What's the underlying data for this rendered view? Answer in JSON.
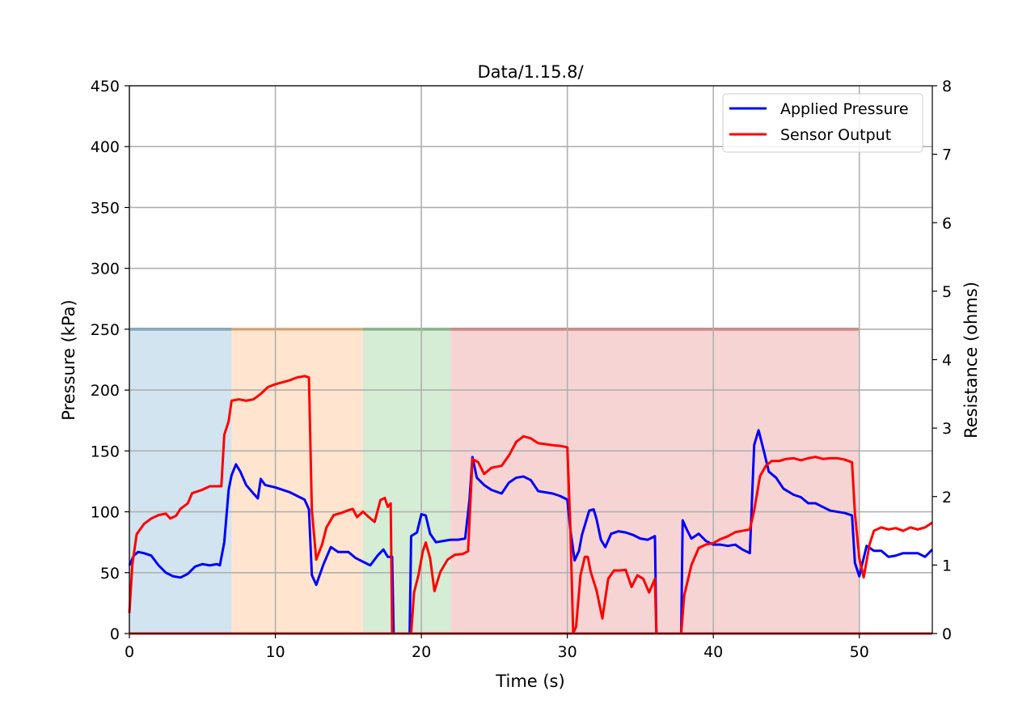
{
  "chart_data": {
    "type": "line",
    "title": "Data/1.15.8/",
    "xlabel": "Time (s)",
    "ylabel": "Pressure (kPa)",
    "y2label": "Resistance (ohms)",
    "xlim": [
      0,
      55
    ],
    "ylim": [
      0,
      450
    ],
    "y2lim": [
      0,
      8
    ],
    "xticks": [
      "0",
      "10",
      "20",
      "30",
      "40",
      "50"
    ],
    "yticks": [
      "0",
      "50",
      "100",
      "150",
      "200",
      "250",
      "300",
      "350",
      "400",
      "450"
    ],
    "y2ticks": [
      "0",
      "1",
      "2",
      "3",
      "4",
      "5",
      "6",
      "7",
      "8"
    ],
    "grid": true,
    "legend_position": "top-right",
    "phases": [
      {
        "start": 0,
        "end": 7,
        "color": "#1f77b4",
        "level": 250
      },
      {
        "start": 7,
        "end": 16,
        "color": "#ff7f0e",
        "level": 250
      },
      {
        "start": 16,
        "end": 22,
        "color": "#2ca02c",
        "level": 250
      },
      {
        "start": 22,
        "end": 50,
        "color": "#d62728",
        "level": 250
      }
    ],
    "baseline": {
      "start": 0,
      "end": 55,
      "value": 0,
      "color": "#d62728"
    },
    "series": [
      {
        "name": "Applied Pressure",
        "axis": "left",
        "color": "#0000ff",
        "points": [
          [
            0,
            56
          ],
          [
            0.3,
            64
          ],
          [
            0.6,
            67
          ],
          [
            1,
            66
          ],
          [
            1.5,
            64
          ],
          [
            2,
            56
          ],
          [
            2.5,
            50
          ],
          [
            3,
            47
          ],
          [
            3.5,
            46
          ],
          [
            4,
            49
          ],
          [
            4.5,
            55
          ],
          [
            5,
            57
          ],
          [
            5.5,
            56
          ],
          [
            6,
            57
          ],
          [
            6.2,
            56
          ],
          [
            6.5,
            75
          ],
          [
            6.8,
            118
          ],
          [
            7,
            130
          ],
          [
            7.3,
            139
          ],
          [
            7.6,
            133
          ],
          [
            8,
            122
          ],
          [
            8.5,
            115
          ],
          [
            8.8,
            111
          ],
          [
            9,
            127
          ],
          [
            9.3,
            122
          ],
          [
            10,
            120
          ],
          [
            11,
            116
          ],
          [
            12,
            110
          ],
          [
            12.3,
            102
          ],
          [
            12.5,
            48
          ],
          [
            12.8,
            40
          ],
          [
            13.3,
            57
          ],
          [
            13.8,
            71
          ],
          [
            14.3,
            67
          ],
          [
            15,
            67
          ],
          [
            15.5,
            62
          ],
          [
            16,
            59
          ],
          [
            16.5,
            56
          ],
          [
            17,
            64
          ],
          [
            17.4,
            69
          ],
          [
            17.7,
            63
          ],
          [
            18,
            63
          ],
          [
            18.1,
            0
          ],
          [
            19.2,
            0
          ],
          [
            19.3,
            80
          ],
          [
            19.7,
            83
          ],
          [
            20,
            98
          ],
          [
            20.3,
            97
          ],
          [
            20.6,
            82
          ],
          [
            21,
            75
          ],
          [
            21.5,
            76
          ],
          [
            22,
            77
          ],
          [
            22.5,
            77
          ],
          [
            23,
            78
          ],
          [
            23.3,
            110
          ],
          [
            23.5,
            145
          ],
          [
            23.8,
            128
          ],
          [
            24.3,
            122
          ],
          [
            24.8,
            118
          ],
          [
            25.5,
            115
          ],
          [
            26,
            124
          ],
          [
            26.5,
            128
          ],
          [
            27,
            129
          ],
          [
            27.5,
            126
          ],
          [
            28,
            117
          ],
          [
            29,
            115
          ],
          [
            29.5,
            113
          ],
          [
            30,
            110
          ],
          [
            30.2,
            86
          ],
          [
            30.5,
            60
          ],
          [
            30.8,
            68
          ],
          [
            31,
            81
          ],
          [
            31.5,
            101
          ],
          [
            31.8,
            102
          ],
          [
            32,
            94
          ],
          [
            32.3,
            77
          ],
          [
            32.6,
            71
          ],
          [
            33,
            82
          ],
          [
            33.5,
            84
          ],
          [
            34,
            83
          ],
          [
            34.5,
            81
          ],
          [
            35,
            78
          ],
          [
            35.5,
            77
          ],
          [
            36,
            80
          ],
          [
            36.1,
            0
          ],
          [
            37.8,
            0
          ],
          [
            37.9,
            93
          ],
          [
            38.2,
            85
          ],
          [
            38.5,
            78
          ],
          [
            39,
            82
          ],
          [
            39.5,
            76
          ],
          [
            40,
            73
          ],
          [
            40.5,
            73
          ],
          [
            41,
            72
          ],
          [
            41.5,
            73
          ],
          [
            42,
            69
          ],
          [
            42.5,
            66
          ],
          [
            42.8,
            155
          ],
          [
            43.1,
            167
          ],
          [
            43.5,
            148
          ],
          [
            43.8,
            133
          ],
          [
            44.3,
            128
          ],
          [
            44.8,
            119
          ],
          [
            45.5,
            114
          ],
          [
            46,
            112
          ],
          [
            46.5,
            107
          ],
          [
            47,
            107
          ],
          [
            47.5,
            104
          ],
          [
            48,
            101
          ],
          [
            49,
            99
          ],
          [
            49.5,
            97
          ],
          [
            49.7,
            58
          ],
          [
            50,
            47
          ],
          [
            50.5,
            72
          ],
          [
            51,
            68
          ],
          [
            51.5,
            68
          ],
          [
            52,
            63
          ],
          [
            52.5,
            64
          ],
          [
            53,
            66
          ],
          [
            54,
            66
          ],
          [
            54.5,
            63
          ],
          [
            55,
            69
          ]
        ]
      },
      {
        "name": "Sensor Output",
        "axis": "right",
        "color": "#ff0000",
        "points": [
          [
            0,
            0.3
          ],
          [
            0.2,
            1.0
          ],
          [
            0.5,
            1.45
          ],
          [
            1,
            1.6
          ],
          [
            1.5,
            1.68
          ],
          [
            2,
            1.73
          ],
          [
            2.5,
            1.75
          ],
          [
            2.8,
            1.68
          ],
          [
            3.2,
            1.72
          ],
          [
            3.5,
            1.82
          ],
          [
            4,
            1.9
          ],
          [
            4.3,
            2.05
          ],
          [
            5,
            2.1
          ],
          [
            5.5,
            2.15
          ],
          [
            6,
            2.15
          ],
          [
            6.3,
            2.15
          ],
          [
            6.5,
            2.9
          ],
          [
            6.8,
            3.1
          ],
          [
            7,
            3.4
          ],
          [
            7.5,
            3.42
          ],
          [
            8,
            3.4
          ],
          [
            8.5,
            3.42
          ],
          [
            9,
            3.5
          ],
          [
            9.5,
            3.6
          ],
          [
            10,
            3.64
          ],
          [
            10.5,
            3.67
          ],
          [
            11,
            3.7
          ],
          [
            11.5,
            3.74
          ],
          [
            12,
            3.76
          ],
          [
            12.3,
            3.74
          ],
          [
            12.5,
            1.8
          ],
          [
            12.8,
            1.08
          ],
          [
            13.2,
            1.3
          ],
          [
            13.5,
            1.55
          ],
          [
            14,
            1.73
          ],
          [
            14.5,
            1.76
          ],
          [
            15,
            1.8
          ],
          [
            15.3,
            1.82
          ],
          [
            15.6,
            1.7
          ],
          [
            16,
            1.78
          ],
          [
            16.4,
            1.7
          ],
          [
            16.8,
            1.63
          ],
          [
            17.2,
            1.95
          ],
          [
            17.5,
            1.98
          ],
          [
            17.7,
            1.85
          ],
          [
            17.9,
            1.9
          ],
          [
            18,
            0
          ],
          [
            19.3,
            0
          ],
          [
            19.5,
            0.6
          ],
          [
            19.8,
            0.85
          ],
          [
            20.1,
            1.2
          ],
          [
            20.3,
            1.33
          ],
          [
            20.6,
            1.1
          ],
          [
            20.9,
            0.62
          ],
          [
            21.3,
            0.9
          ],
          [
            21.8,
            1.08
          ],
          [
            22.3,
            1.15
          ],
          [
            22.8,
            1.16
          ],
          [
            23.2,
            1.2
          ],
          [
            23.5,
            2.55
          ],
          [
            23.9,
            2.5
          ],
          [
            24.3,
            2.33
          ],
          [
            24.8,
            2.42
          ],
          [
            25.5,
            2.45
          ],
          [
            26,
            2.6
          ],
          [
            26.5,
            2.8
          ],
          [
            27,
            2.88
          ],
          [
            27.5,
            2.85
          ],
          [
            28,
            2.78
          ],
          [
            29,
            2.75
          ],
          [
            29.5,
            2.74
          ],
          [
            30,
            2.72
          ],
          [
            30.2,
            1.6
          ],
          [
            30.4,
            0
          ],
          [
            30.6,
            0.1
          ],
          [
            30.9,
            0.85
          ],
          [
            31.2,
            1.12
          ],
          [
            31.4,
            1.12
          ],
          [
            31.6,
            0.9
          ],
          [
            32,
            0.63
          ],
          [
            32.4,
            0.22
          ],
          [
            32.8,
            0.8
          ],
          [
            33.2,
            0.92
          ],
          [
            33.6,
            0.92
          ],
          [
            34,
            0.93
          ],
          [
            34.4,
            0.68
          ],
          [
            34.8,
            0.85
          ],
          [
            35.2,
            0.8
          ],
          [
            35.6,
            0.6
          ],
          [
            36,
            0.8
          ],
          [
            36.1,
            0
          ],
          [
            37.8,
            0
          ],
          [
            38,
            0.55
          ],
          [
            38.5,
            1.0
          ],
          [
            39,
            1.25
          ],
          [
            39.5,
            1.3
          ],
          [
            40,
            1.32
          ],
          [
            40.5,
            1.38
          ],
          [
            41,
            1.42
          ],
          [
            41.5,
            1.48
          ],
          [
            42,
            1.5
          ],
          [
            42.5,
            1.52
          ],
          [
            42.8,
            1.8
          ],
          [
            43.2,
            2.3
          ],
          [
            43.6,
            2.45
          ],
          [
            44,
            2.52
          ],
          [
            44.5,
            2.52
          ],
          [
            45,
            2.55
          ],
          [
            45.5,
            2.56
          ],
          [
            46,
            2.53
          ],
          [
            46.5,
            2.56
          ],
          [
            47,
            2.58
          ],
          [
            47.5,
            2.55
          ],
          [
            48,
            2.56
          ],
          [
            48.5,
            2.56
          ],
          [
            49,
            2.54
          ],
          [
            49.5,
            2.5
          ],
          [
            49.7,
            1.75
          ],
          [
            50,
            1.1
          ],
          [
            50.3,
            0.82
          ],
          [
            50.7,
            1.3
          ],
          [
            51,
            1.5
          ],
          [
            51.5,
            1.55
          ],
          [
            52,
            1.52
          ],
          [
            52.5,
            1.54
          ],
          [
            53,
            1.5
          ],
          [
            53.5,
            1.55
          ],
          [
            54,
            1.52
          ],
          [
            54.5,
            1.55
          ],
          [
            55,
            1.62
          ]
        ]
      }
    ]
  }
}
